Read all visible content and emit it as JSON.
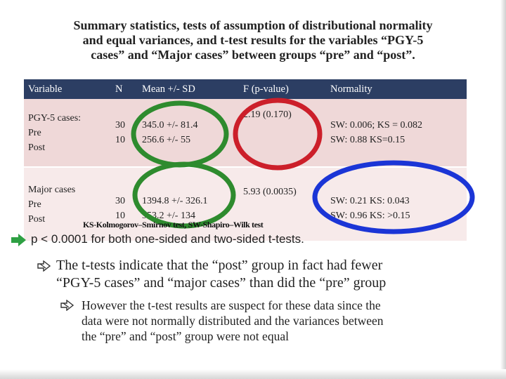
{
  "title": {
    "line1": "Summary statistics, tests of assumption of distributional normality",
    "line2": "and equal variances, and t-test results for the variables “PGY-5",
    "line3": "cases” and “Major cases” between groups “pre” and “post”."
  },
  "table": {
    "headers": [
      "Variable",
      "N",
      "Mean +/- SD",
      "F (p-value)",
      "Normality"
    ],
    "rows": [
      {
        "variable": [
          "PGY-5 cases:",
          "Pre",
          "Post"
        ],
        "n": [
          "30",
          "10"
        ],
        "mean": [
          "345.0 +/- 81.4",
          "256.6 +/- 55"
        ],
        "f": "2.19 (0.170)",
        "normality": [
          "SW: 0.006; KS = 0.082",
          "SW: 0.88 KS=0.15"
        ]
      },
      {
        "variable": [
          "Major cases",
          "Pre",
          "Post"
        ],
        "n": [
          "30",
          "10"
        ],
        "mean": [
          "1394.8 +/- 326.1",
          "953.2 +/- 134"
        ],
        "f": "5.93 (0.0035)",
        "normality": [
          "SW: 0.21 KS: 0.043",
          "SW: 0.96 KS: >0.15"
        ]
      }
    ]
  },
  "annotation_colors": {
    "mean_oval": "#2e8b2e",
    "f_oval": "#cc1f2a",
    "normality_oval": "#1b35d6"
  },
  "footnote": "KS-Kolmogorov–Smirnov test, SW-Shapiro–Wilk test",
  "result_line": "p < 0.0001 for both one-sided and two-sided t-tests.",
  "bullets": {
    "main": [
      "The t-tests indicate that the “post” group in fact had fewer",
      "“PGY-5 cases” and “major cases” than did the “pre” group"
    ],
    "sub": [
      "However the t-test results are suspect for these data since the",
      "data were not normally distributed and the variances between",
      "the “pre” and “post” group were not equal"
    ]
  },
  "icons": {
    "result_marker": "green-arrow-icon",
    "bullet": "hollow-arrow-bullet-icon"
  },
  "colors": {
    "header_bg": "#2c3e63",
    "row_bg_1": "#efd8d8",
    "row_bg_2": "#f7eaea",
    "arrow_green": "#2ea043"
  }
}
